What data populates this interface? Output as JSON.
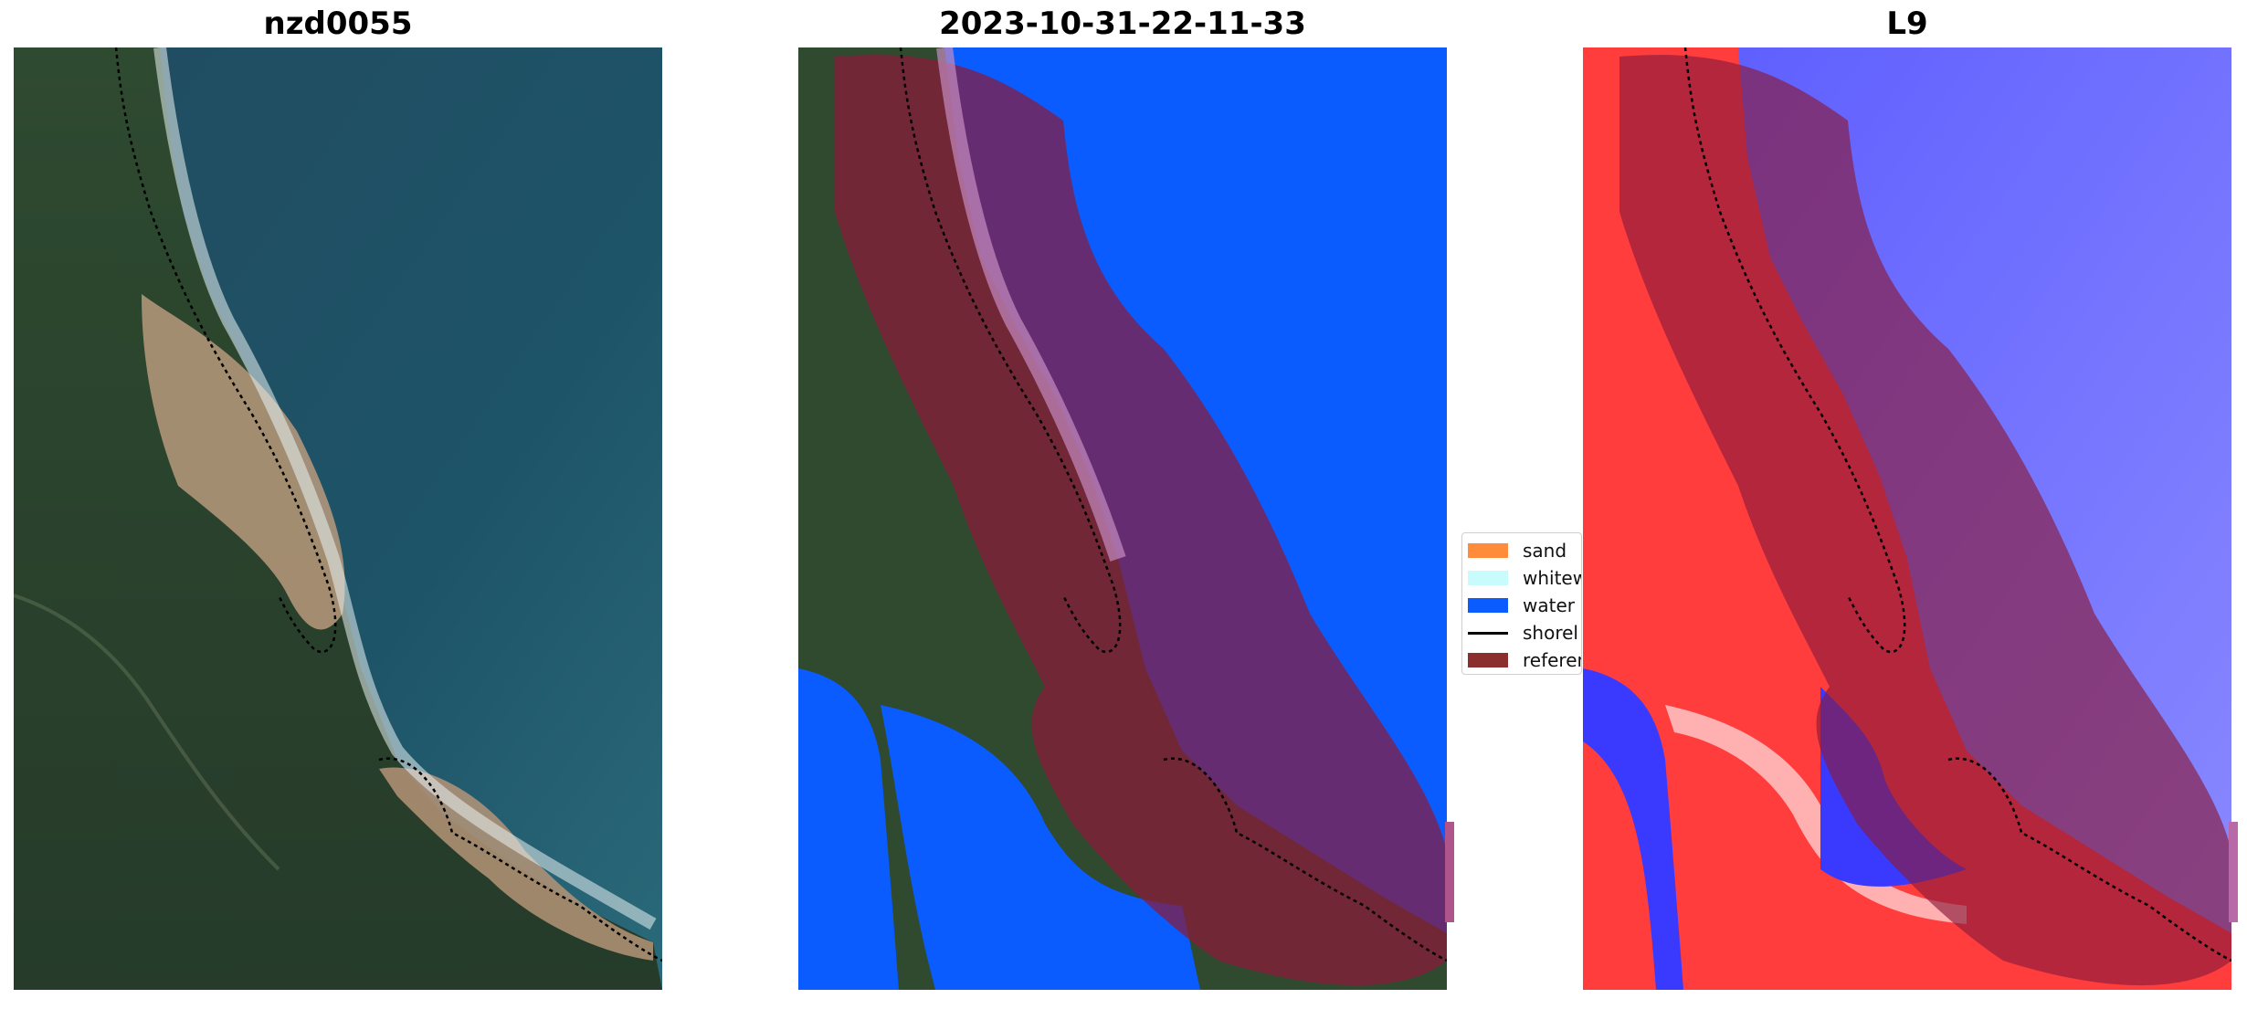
{
  "panels": [
    {
      "title": "nzd0055"
    },
    {
      "title": "2023-10-31-22-11-33"
    },
    {
      "title": "L9"
    }
  ],
  "legend": {
    "items": [
      {
        "label": "sand",
        "color": "#ff8c3a"
      },
      {
        "label": "whitew",
        "color": "#c8fcfc"
      },
      {
        "label": "water",
        "color": "#0a5cff"
      },
      {
        "label": "shorel",
        "color": "#000000"
      },
      {
        "label": "referen",
        "color": "#8b2e2e"
      }
    ]
  },
  "colors": {
    "land": "#2f4a2e",
    "ocean": "#1f4f66",
    "sand": "#c7a27c",
    "water_class": "#0a5cff",
    "buffer_overlay": "#8b1a3a",
    "index_positive": "#ff3a3a",
    "index_negative": "#3a3aff"
  }
}
